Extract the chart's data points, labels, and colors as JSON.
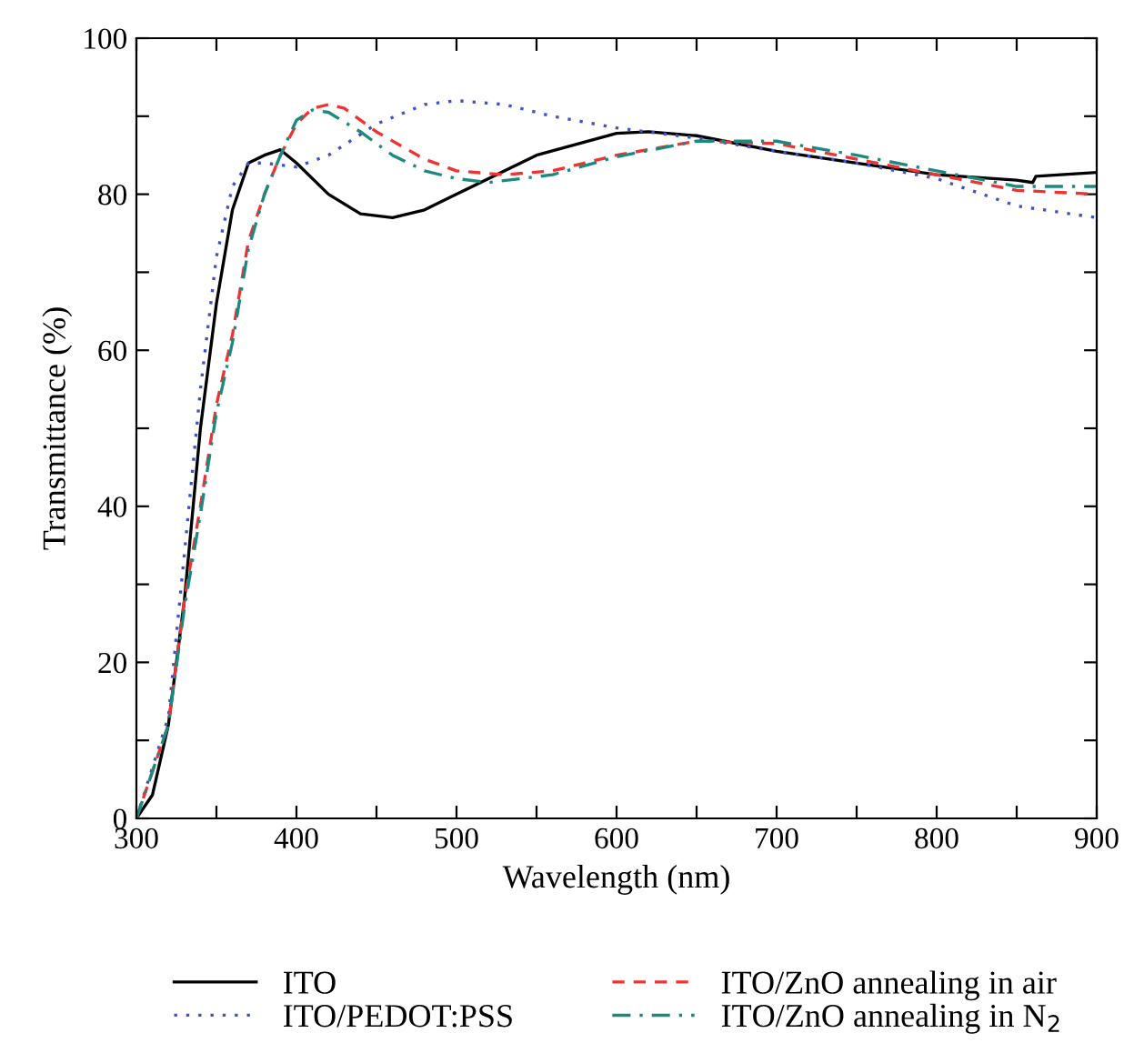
{
  "chart_data": {
    "type": "line",
    "xlabel": "Wavelength (nm)",
    "ylabel": "Transmittance (%)",
    "xlim": [
      300,
      900
    ],
    "ylim": [
      0,
      100
    ],
    "xticks": [
      300,
      {
        "value": 350,
        "label": null
      },
      400,
      {
        "value": 450,
        "label": null
      },
      500,
      {
        "value": 550,
        "label": null
      },
      600,
      {
        "value": 650,
        "label": null
      },
      700,
      {
        "value": 750,
        "label": null
      },
      800,
      {
        "value": 850,
        "label": null
      },
      900
    ],
    "yticks": [
      0,
      {
        "value": 10,
        "label": null
      },
      20,
      {
        "value": 30,
        "label": null
      },
      40,
      {
        "value": 50,
        "label": null
      },
      60,
      {
        "value": 70,
        "label": null
      },
      80,
      {
        "value": 90,
        "label": null
      },
      100
    ],
    "grid": false,
    "legend": "bottom",
    "marker": "none",
    "series": [
      {
        "name": "ITO",
        "color": "#000000",
        "line_style": "solid",
        "x": [
          300,
          310,
          320,
          330,
          340,
          350,
          360,
          370,
          380,
          390,
          400,
          420,
          440,
          460,
          480,
          500,
          550,
          600,
          620,
          650,
          700,
          750,
          800,
          850,
          860,
          862,
          900
        ],
        "values": [
          0,
          3,
          12,
          28,
          50,
          66,
          78,
          84,
          85,
          85.7,
          84,
          80,
          77.5,
          77,
          78,
          80,
          85,
          87.8,
          88,
          87.5,
          85.5,
          84,
          82.5,
          81.8,
          81.5,
          82.3,
          82.8
        ]
      },
      {
        "name": "ITO/PEDOT:PSS",
        "color": "#3f51c4",
        "line_style": "dotted",
        "x": [
          300,
          320,
          340,
          350,
          360,
          370,
          380,
          400,
          420,
          450,
          480,
          500,
          530,
          560,
          600,
          650,
          700,
          750,
          800,
          850,
          900
        ],
        "values": [
          0,
          13,
          55,
          72,
          81,
          84,
          84,
          83.5,
          85,
          89,
          91.5,
          92,
          91.5,
          90,
          88.5,
          87.2,
          85.5,
          84,
          82,
          78.5,
          77
        ]
      },
      {
        "name": "ITO/ZnO annealing in air",
        "color": "#ee3333",
        "line_style": "dashed",
        "x": [
          300,
          320,
          330,
          340,
          350,
          360,
          370,
          380,
          390,
          400,
          410,
          420,
          430,
          450,
          480,
          500,
          530,
          560,
          600,
          650,
          700,
          750,
          800,
          850,
          900
        ],
        "values": [
          0,
          12,
          28,
          40,
          53,
          62,
          74,
          80,
          85,
          89,
          91,
          91.5,
          91,
          88,
          84.5,
          83,
          82.5,
          83,
          85,
          86.8,
          86.5,
          84.5,
          82.5,
          80.5,
          80
        ]
      },
      {
        "name": "ITO/ZnO annealing in N$_{2}$",
        "color": "#1a8a80",
        "line_style": "dashdot",
        "x": [
          300,
          320,
          330,
          340,
          350,
          360,
          370,
          380,
          390,
          400,
          410,
          420,
          440,
          460,
          480,
          500,
          520,
          560,
          600,
          650,
          700,
          750,
          800,
          850,
          900
        ],
        "values": [
          0,
          12,
          27,
          39,
          52,
          61,
          73,
          80,
          85,
          89.5,
          90.8,
          90.5,
          88,
          85,
          83,
          82,
          81.5,
          82.5,
          84.8,
          86.8,
          86.8,
          85,
          83,
          81,
          81
        ]
      }
    ]
  }
}
